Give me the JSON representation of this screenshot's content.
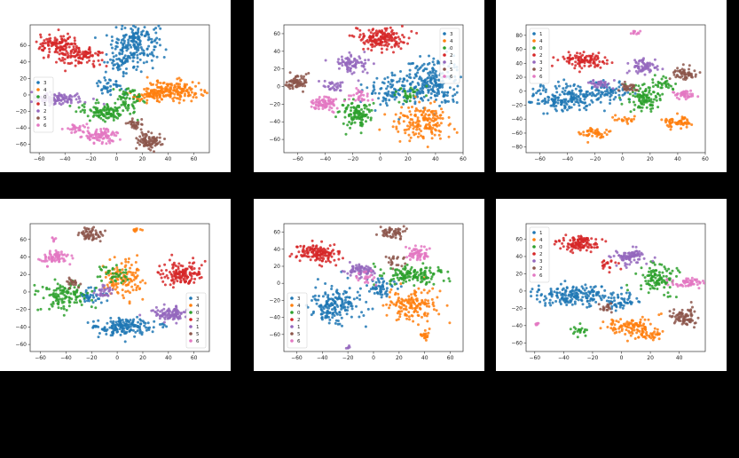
{
  "chart_data": [
    {
      "type": "scatter",
      "xticks": [
        "−60",
        "−40",
        "−20",
        "0",
        "20",
        "40",
        "60"
      ],
      "yticks": [
        "60",
        "40",
        "20",
        "0",
        "−20",
        "−40",
        "−60"
      ],
      "xlim": [
        -67,
        72
      ],
      "ylim": [
        -70,
        85
      ],
      "legend": {
        "labels": [
          "3",
          "4",
          "0",
          "1",
          "2",
          "5",
          "6"
        ],
        "position": "center-left"
      },
      "series": [
        {
          "color": "#1f77b4",
          "clusters": [
            [
              15,
              65,
              9,
              12,
              180
            ],
            [
              5,
              40,
              7,
              6,
              60
            ],
            [
              -5,
              10,
              6,
              6,
              40
            ]
          ]
        },
        {
          "color": "#ff7f0e",
          "clusters": [
            [
              45,
              5,
              11,
              6,
              170
            ],
            [
              25,
              0,
              8,
              5,
              60
            ]
          ]
        },
        {
          "color": "#2ca02c",
          "clusters": [
            [
              -10,
              -20,
              9,
              5,
              110
            ],
            [
              10,
              -5,
              7,
              8,
              60
            ]
          ]
        },
        {
          "color": "#d62728",
          "clusters": [
            [
              -45,
              60,
              8,
              6,
              110
            ],
            [
              -28,
              47,
              9,
              6,
              110
            ]
          ]
        },
        {
          "color": "#9467bd",
          "clusters": [
            [
              -47,
              -5,
              11,
              3.5,
              120
            ]
          ]
        },
        {
          "color": "#8c564b",
          "clusters": [
            [
              25,
              -55,
              5,
              5,
              90
            ],
            [
              15,
              -35,
              4,
              4,
              30
            ]
          ]
        },
        {
          "color": "#e377c2",
          "clusters": [
            [
              -12,
              -50,
              7,
              4,
              90
            ],
            [
              -30,
              -40,
              5,
              3,
              30
            ]
          ]
        }
      ]
    },
    {
      "type": "scatter",
      "xticks": [
        "−60",
        "−40",
        "−20",
        "0",
        "20",
        "40",
        "60"
      ],
      "yticks": [
        "60",
        "40",
        "20",
        "0",
        "−20",
        "−40",
        "−60"
      ],
      "xlim": [
        -70,
        60
      ],
      "ylim": [
        -75,
        70
      ],
      "legend": {
        "labels": [
          "3",
          "4",
          "0",
          "2",
          "1",
          "5",
          "6"
        ],
        "position": "top-right"
      },
      "series": [
        {
          "color": "#1f77b4",
          "clusters": [
            [
              35,
              5,
              12,
              14,
              250
            ],
            [
              5,
              -5,
              9,
              9,
              70
            ]
          ]
        },
        {
          "color": "#ff7f0e",
          "clusters": [
            [
              30,
              -40,
              10,
              9,
              170
            ]
          ]
        },
        {
          "color": "#2ca02c",
          "clusters": [
            [
              -18,
              -32,
              6,
              7,
              110
            ],
            [
              20,
              -10,
              5,
              5,
              30
            ]
          ]
        },
        {
          "color": "#d62728",
          "clusters": [
            [
              0,
              55,
              9,
              6,
              170
            ]
          ]
        },
        {
          "color": "#9467bd",
          "clusters": [
            [
              -20,
              25,
              6,
              5,
              80
            ],
            [
              -35,
              0,
              4,
              4,
              30
            ]
          ]
        },
        {
          "color": "#8c564b",
          "clusters": [
            [
              -60,
              5,
              4,
              4,
              70
            ]
          ]
        },
        {
          "color": "#e377c2",
          "clusters": [
            [
              -40,
              -20,
              6,
              4,
              80
            ],
            [
              -15,
              -10,
              4,
              4,
              30
            ]
          ]
        }
      ]
    },
    {
      "type": "scatter",
      "xticks": [
        "−60",
        "−40",
        "−20",
        "0",
        "20",
        "40",
        "60"
      ],
      "yticks": [
        "80",
        "60",
        "40",
        "20",
        "0",
        "−20",
        "−40",
        "−60",
        "−80"
      ],
      "xlim": [
        -70,
        60
      ],
      "ylim": [
        -88,
        95
      ],
      "legend": {
        "labels": [
          "1",
          "4",
          "0",
          "2",
          "3",
          "2",
          "6"
        ],
        "position": "top-left"
      },
      "series": [
        {
          "color": "#1f77b4",
          "clusters": [
            [
              -40,
              -10,
              14,
              10,
              200
            ],
            [
              -10,
              0,
              9,
              7,
              70
            ]
          ]
        },
        {
          "color": "#ff7f0e",
          "clusters": [
            [
              -20,
              -60,
              5,
              4,
              50
            ],
            [
              40,
              -45,
              6,
              4,
              60
            ],
            [
              0,
              -40,
              4,
              3,
              20
            ]
          ]
        },
        {
          "color": "#2ca02c",
          "clusters": [
            [
              15,
              -10,
              6,
              10,
              110
            ],
            [
              30,
              10,
              5,
              5,
              30
            ]
          ]
        },
        {
          "color": "#d62728",
          "clusters": [
            [
              -30,
              45,
              9,
              5,
              110
            ]
          ]
        },
        {
          "color": "#9467bd",
          "clusters": [
            [
              15,
              35,
              5,
              5,
              70
            ],
            [
              -15,
              10,
              4,
              4,
              30
            ]
          ]
        },
        {
          "color": "#8c564b",
          "clusters": [
            [
              45,
              25,
              5,
              5,
              60
            ],
            [
              5,
              5,
              4,
              4,
              30
            ]
          ]
        },
        {
          "color": "#e377c2",
          "clusters": [
            [
              45,
              -5,
              4,
              3,
              40
            ],
            [
              10,
              85,
              2,
              2,
              10
            ]
          ]
        }
      ]
    },
    {
      "type": "scatter",
      "xticks": [
        "−60",
        "−40",
        "−20",
        "0",
        "20",
        "40",
        "60"
      ],
      "yticks": [
        "60",
        "40",
        "20",
        "0",
        "−20",
        "−40",
        "−60"
      ],
      "xlim": [
        -68,
        72
      ],
      "ylim": [
        -68,
        78
      ],
      "legend": {
        "labels": [
          "3",
          "4",
          "0",
          "2",
          "1",
          "5",
          "6"
        ],
        "position": "bottom-right"
      },
      "series": [
        {
          "color": "#1f77b4",
          "clusters": [
            [
              5,
              -40,
              12,
              5,
              170
            ],
            [
              -20,
              -5,
              5,
              4,
              40
            ]
          ]
        },
        {
          "color": "#ff7f0e",
          "clusters": [
            [
              5,
              15,
              8,
              12,
              120
            ],
            [
              15,
              70,
              2,
              2,
              10
            ]
          ]
        },
        {
          "color": "#2ca02c",
          "clusters": [
            [
              -40,
              -5,
              10,
              8,
              120
            ],
            [
              -5,
              20,
              6,
              5,
              40
            ]
          ]
        },
        {
          "color": "#d62728",
          "clusters": [
            [
              50,
              20,
              8,
              7,
              140
            ]
          ]
        },
        {
          "color": "#9467bd",
          "clusters": [
            [
              40,
              -25,
              7,
              4,
              100
            ],
            [
              -10,
              0,
              4,
              4,
              30
            ]
          ]
        },
        {
          "color": "#8c564b",
          "clusters": [
            [
              -20,
              65,
              5,
              4,
              60
            ],
            [
              -35,
              10,
              3,
              3,
              20
            ]
          ]
        },
        {
          "color": "#e377c2",
          "clusters": [
            [
              -50,
              40,
              6,
              4,
              70
            ],
            [
              -50,
              60,
              1,
              1,
              6
            ]
          ]
        }
      ]
    },
    {
      "type": "scatter",
      "xticks": [
        "−60",
        "−40",
        "−20",
        "0",
        "20",
        "40",
        "60"
      ],
      "yticks": [
        "60",
        "40",
        "20",
        "0",
        "−20",
        "−40",
        "−60"
      ],
      "xlim": [
        -70,
        70
      ],
      "ylim": [
        -80,
        70
      ],
      "legend": {
        "labels": [
          "3",
          "4",
          "0",
          "2",
          "1",
          "5",
          "6"
        ],
        "position": "bottom-left"
      },
      "series": [
        {
          "color": "#1f77b4",
          "clusters": [
            [
              -30,
              -25,
              10,
              12,
              180
            ],
            [
              5,
              -5,
              6,
              6,
              60
            ]
          ]
        },
        {
          "color": "#ff7f0e",
          "clusters": [
            [
              30,
              -25,
              10,
              10,
              150
            ],
            [
              40,
              -60,
              2,
              3,
              20
            ]
          ]
        },
        {
          "color": "#2ca02c",
          "clusters": [
            [
              30,
              10,
              12,
              5,
              140
            ]
          ]
        },
        {
          "color": "#d62728",
          "clusters": [
            [
              -45,
              35,
              8,
              6,
              140
            ]
          ]
        },
        {
          "color": "#9467bd",
          "clusters": [
            [
              -10,
              15,
              5,
              4,
              70
            ],
            [
              -20,
              -75,
              1,
              1,
              6
            ]
          ]
        },
        {
          "color": "#8c564b",
          "clusters": [
            [
              15,
              60,
              5,
              4,
              60
            ],
            [
              15,
              25,
              4,
              4,
              20
            ]
          ]
        },
        {
          "color": "#e377c2",
          "clusters": [
            [
              35,
              35,
              5,
              4,
              60
            ],
            [
              -5,
              5,
              4,
              4,
              20
            ]
          ]
        }
      ]
    },
    {
      "type": "scatter",
      "xticks": [
        "−60",
        "−40",
        "−20",
        "0",
        "20",
        "40"
      ],
      "yticks": [
        "60",
        "40",
        "20",
        "0",
        "−20",
        "−40",
        "−60"
      ],
      "xlim": [
        -66,
        58
      ],
      "ylim": [
        -70,
        78
      ],
      "legend": {
        "labels": [
          "1",
          "4",
          "0",
          "2",
          "3",
          "2",
          "6"
        ],
        "position": "top-left"
      },
      "series": [
        {
          "color": "#1f77b4",
          "clusters": [
            [
              -35,
              -5,
              14,
              6,
              190
            ],
            [
              0,
              -10,
              6,
              5,
              50
            ]
          ]
        },
        {
          "color": "#ff7f0e",
          "clusters": [
            [
              5,
              -40,
              8,
              5,
              100
            ],
            [
              20,
              -50,
              5,
              3,
              40
            ]
          ]
        },
        {
          "color": "#2ca02c",
          "clusters": [
            [
              25,
              15,
              6,
              9,
              110
            ],
            [
              -30,
              -45,
              3,
              3,
              20
            ]
          ]
        },
        {
          "color": "#d62728",
          "clusters": [
            [
              -30,
              55,
              7,
              5,
              120
            ],
            [
              -10,
              30,
              3,
              3,
              20
            ]
          ]
        },
        {
          "color": "#9467bd",
          "clusters": [
            [
              5,
              40,
              6,
              5,
              90
            ]
          ]
        },
        {
          "color": "#8c564b",
          "clusters": [
            [
              45,
              -30,
              5,
              5,
              80
            ],
            [
              -10,
              -20,
              3,
              3,
              20
            ]
          ]
        },
        {
          "color": "#e377c2",
          "clusters": [
            [
              45,
              10,
              6,
              3,
              60
            ],
            [
              -58,
              -38,
              1,
              1,
              6
            ]
          ]
        }
      ]
    }
  ]
}
